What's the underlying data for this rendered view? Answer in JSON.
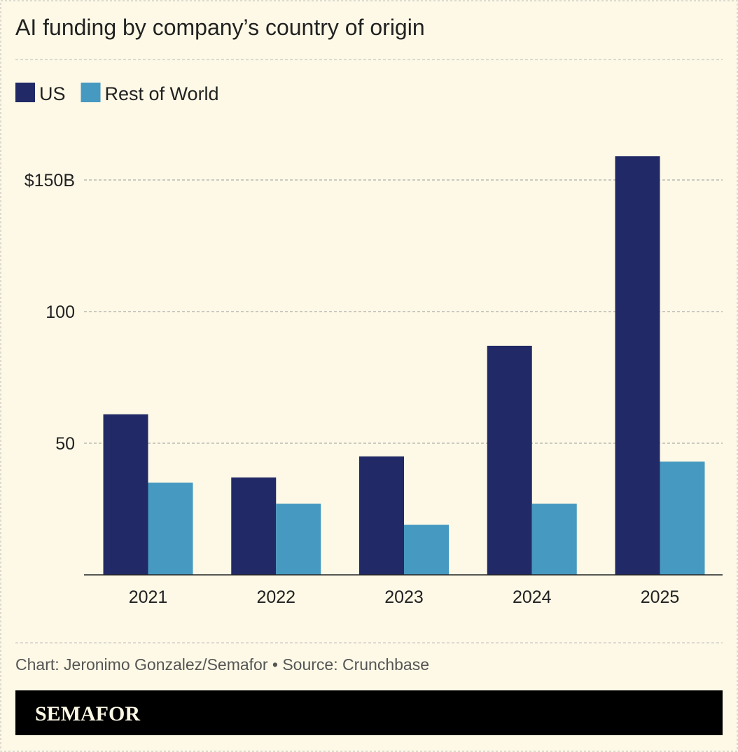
{
  "chart_data": {
    "type": "bar",
    "title": "AI funding by company’s country of origin",
    "categories": [
      "2021",
      "2022",
      "2023",
      "2024",
      "2025"
    ],
    "series": [
      {
        "name": "US",
        "color": "#212a66",
        "values": [
          61,
          37,
          45,
          87,
          159
        ]
      },
      {
        "name": "Rest of World",
        "color": "#4699c0",
        "values": [
          35,
          27,
          19,
          27,
          43
        ]
      }
    ],
    "ylim": [
      0,
      165
    ],
    "yticks": [
      50,
      100,
      150
    ],
    "ytick_labels": [
      "50",
      "100",
      "$150B"
    ],
    "grid": true,
    "legend_placement": "top-left",
    "xlabel": "",
    "ylabel": ""
  },
  "footer": {
    "credit": "Chart: Jeronimo Gonzalez/Semafor • Source: Crunchbase",
    "brand": "SEMAFOR"
  },
  "colors": {
    "background": "#fdf9e6",
    "brand_bar": "#000000",
    "brand_text": "#fdf9e6"
  }
}
